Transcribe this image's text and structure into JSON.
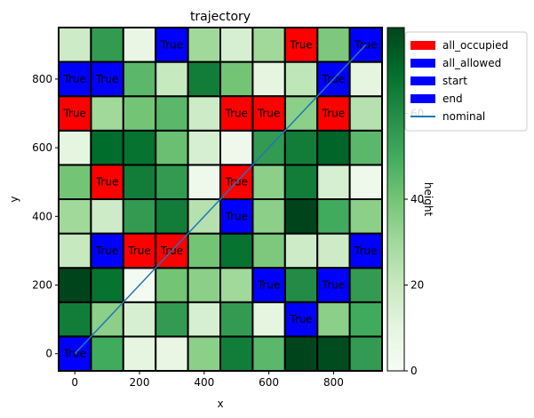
{
  "chart_data": {
    "type": "heatmap",
    "title": "trajectory",
    "xlabel": "x",
    "ylabel": "y",
    "cell_size": 100,
    "xlim": [
      -50,
      950
    ],
    "ylim": [
      -50,
      950
    ],
    "x_ticks": [
      0,
      200,
      400,
      600,
      800
    ],
    "y_ticks": [
      0,
      200,
      400,
      600,
      800
    ],
    "colorbar": {
      "label": "height",
      "range": [
        0,
        80
      ],
      "ticks": [
        0,
        20,
        40,
        60
      ],
      "colormap": [
        "#f7fcf5",
        "#e5f5e0",
        "#c7e9c0",
        "#a1d99b",
        "#74c476",
        "#41ab5d",
        "#238b45",
        "#006d2c",
        "#00441b"
      ]
    },
    "heights": [
      [
        75,
        50,
        10,
        8,
        35,
        65,
        45,
        82,
        78,
        55
      ],
      [
        65,
        35,
        15,
        55,
        15,
        55,
        10,
        28,
        35,
        50
      ],
      [
        82,
        68,
        2,
        40,
        35,
        30,
        40,
        60,
        30,
        55
      ],
      [
        20,
        30,
        62,
        45,
        40,
        68,
        38,
        18,
        18,
        40
      ],
      [
        30,
        18,
        55,
        65,
        25,
        40,
        35,
        85,
        50,
        35
      ],
      [
        40,
        35,
        65,
        55,
        5,
        2,
        35,
        65,
        15,
        5
      ],
      [
        10,
        70,
        68,
        42,
        15,
        5,
        55,
        65,
        72,
        45
      ],
      [
        25,
        30,
        40,
        45,
        18,
        35,
        35,
        35,
        30,
        25
      ],
      [
        10,
        25,
        45,
        20,
        65,
        40,
        10,
        22,
        55,
        10
      ],
      [
        18,
        55,
        8,
        5,
        30,
        15,
        30,
        8,
        38,
        30
      ]
    ],
    "overlay_text": "True",
    "occupied_cells": [
      [
        2,
        3
      ],
      [
        3,
        3
      ],
      [
        1,
        5
      ],
      [
        5,
        5
      ],
      [
        0,
        7
      ],
      [
        5,
        7
      ],
      [
        6,
        7
      ],
      [
        8,
        7
      ],
      [
        7,
        9
      ]
    ],
    "allowed_cells": [
      [
        1,
        3
      ],
      [
        9,
        3
      ],
      [
        6,
        2
      ],
      [
        8,
        2
      ],
      [
        5,
        4
      ],
      [
        7,
        1
      ],
      [
        0,
        8
      ],
      [
        1,
        8
      ],
      [
        8,
        8
      ],
      [
        3,
        9
      ]
    ],
    "start_cell": [
      0,
      0
    ],
    "end_cell": [
      9,
      9
    ],
    "nominal": {
      "x": [
        0,
        900
      ],
      "y": [
        0,
        900
      ]
    },
    "legend": {
      "placement": "upper-left outside",
      "entries": [
        {
          "label": "all_occupied",
          "color": "#ff0000",
          "kind": "patch"
        },
        {
          "label": "all_allowed",
          "color": "#0000ff",
          "kind": "patch"
        },
        {
          "label": "start",
          "color": "#0000ff",
          "kind": "patch"
        },
        {
          "label": "end",
          "color": "#0000ff",
          "kind": "patch"
        },
        {
          "label": "nominal",
          "color": "#1f77b4",
          "kind": "line"
        }
      ]
    },
    "colors": {
      "occupied": "#ff0000",
      "allowed": "#0000ff",
      "nominal": "#1f77b4"
    }
  }
}
